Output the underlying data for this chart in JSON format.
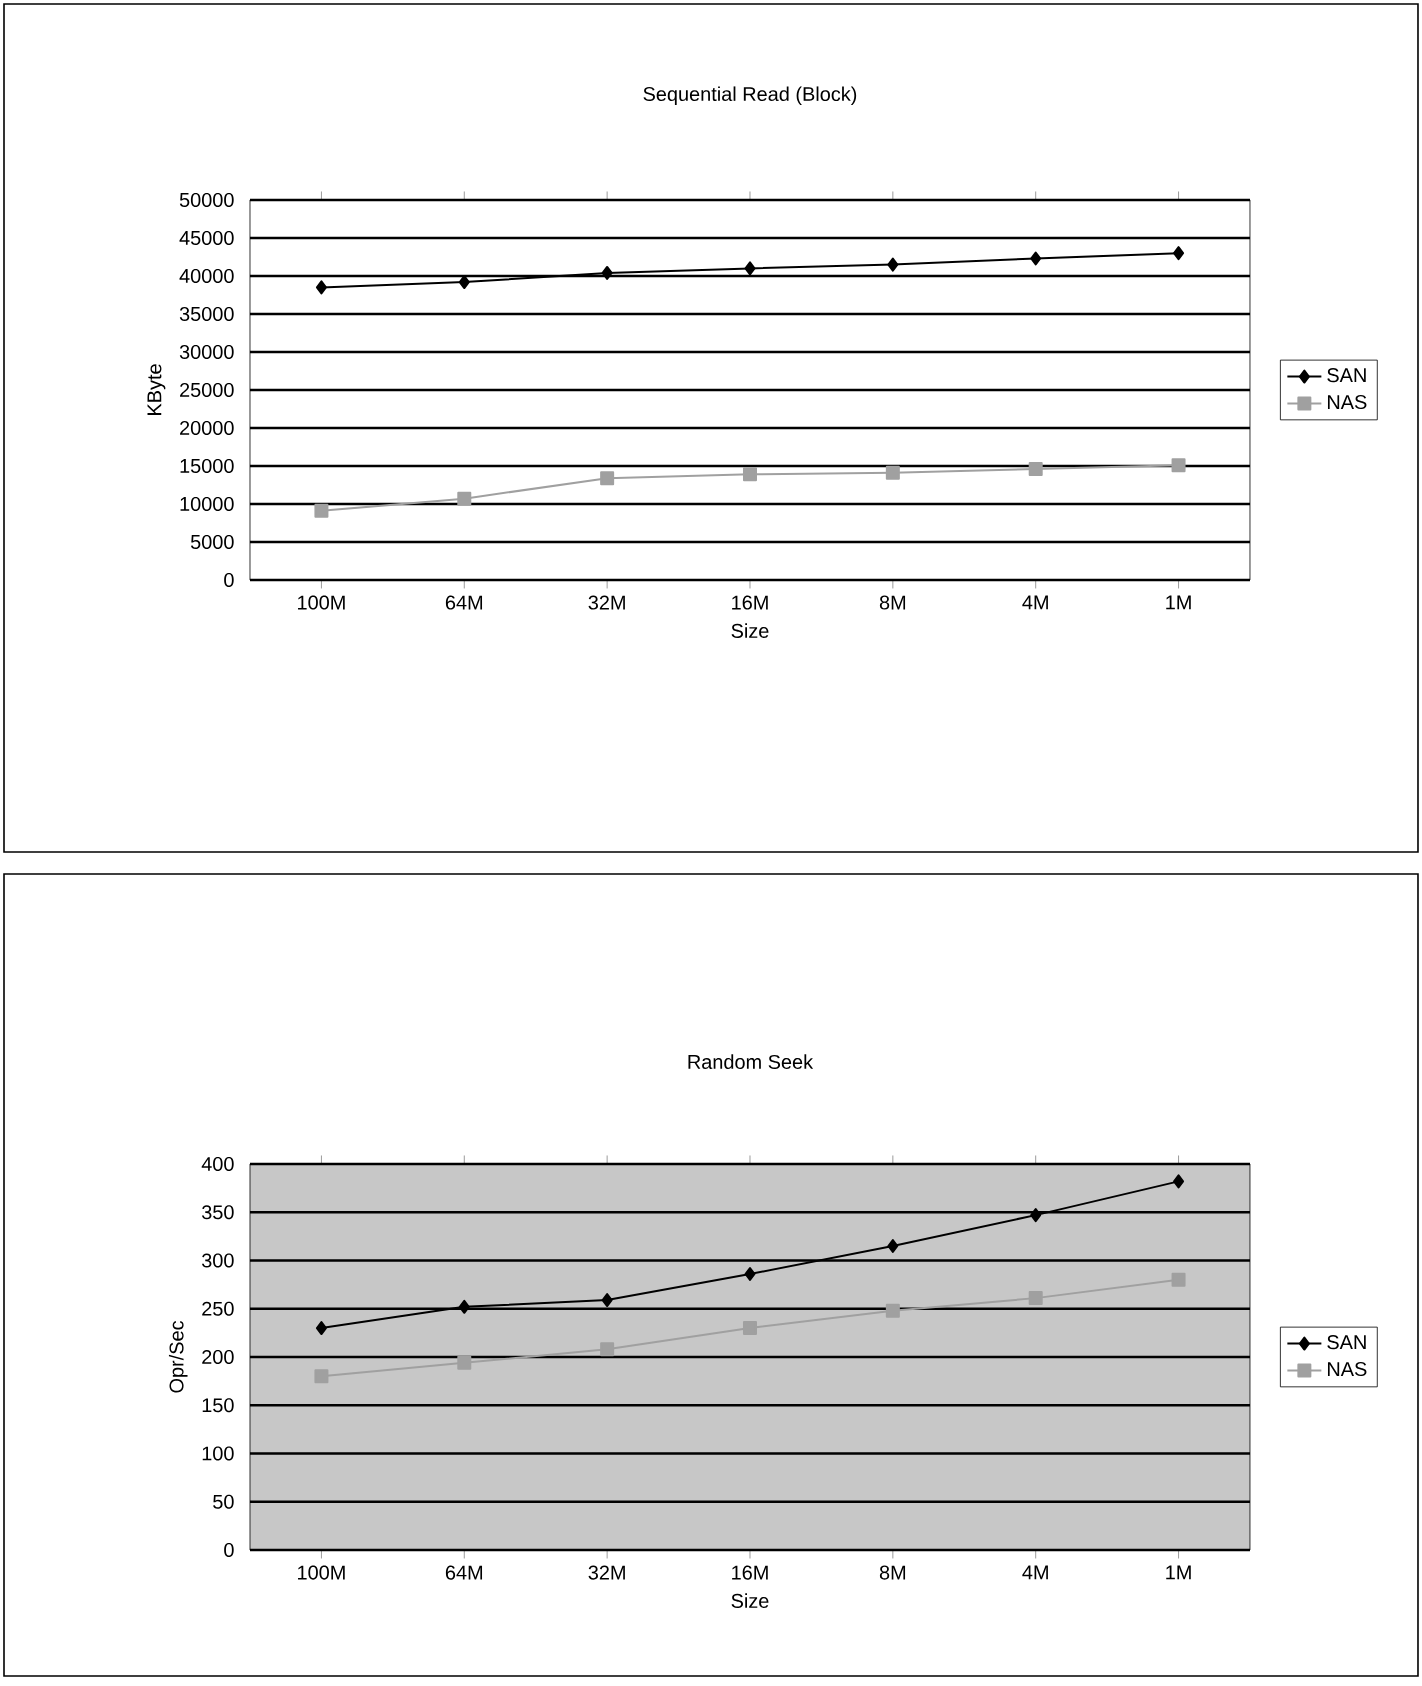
{
  "chart_data": [
    {
      "type": "line",
      "title": "Sequential Read (Block)",
      "xlabel": "Size",
      "ylabel": "KByte",
      "categories": [
        "100M",
        "64M",
        "32M",
        "16M",
        "8M",
        "4M",
        "1M"
      ],
      "ylim": [
        0,
        50000
      ],
      "yticks": [
        0,
        5000,
        10000,
        15000,
        20000,
        25000,
        30000,
        35000,
        40000,
        45000,
        50000
      ],
      "grid": "y",
      "legend": "right",
      "series": [
        {
          "name": "SAN",
          "color": "#000000",
          "marker": "diamond",
          "values": [
            38500,
            39200,
            40400,
            41000,
            41500,
            42300,
            43000
          ]
        },
        {
          "name": "NAS",
          "color": "#a0a0a0",
          "marker": "square",
          "values": [
            9100,
            10700,
            13400,
            13900,
            14100,
            14600,
            15100
          ]
        }
      ]
    },
    {
      "type": "line",
      "title": "Random Seek",
      "xlabel": "Size",
      "ylabel": "Opr/Sec",
      "categories": [
        "100M",
        "64M",
        "32M",
        "16M",
        "8M",
        "4M",
        "1M"
      ],
      "ylim": [
        0,
        400
      ],
      "yticks": [
        0,
        50,
        100,
        150,
        200,
        250,
        300,
        350,
        400
      ],
      "grid": "y",
      "legend": "right",
      "series": [
        {
          "name": "SAN",
          "color": "#000000",
          "marker": "diamond",
          "values": [
            230,
            252,
            259,
            286,
            315,
            347,
            382
          ]
        },
        {
          "name": "NAS",
          "color": "#a0a0a0",
          "marker": "square",
          "values": [
            180,
            194,
            208,
            230,
            248,
            261,
            280
          ]
        }
      ]
    }
  ]
}
